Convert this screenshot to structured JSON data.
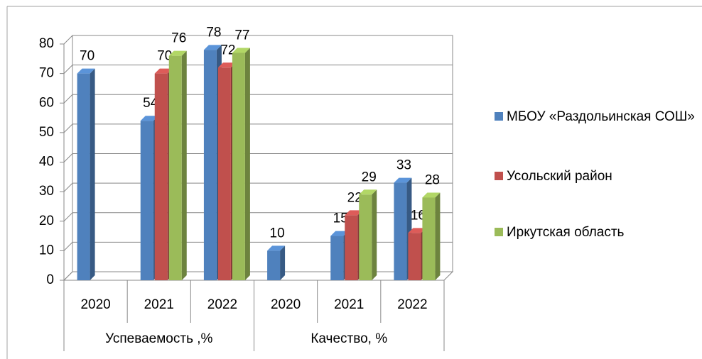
{
  "chart_data": {
    "type": "bar3d",
    "categories": [
      "2020",
      "2021",
      "2022",
      "2020",
      "2021",
      "2022"
    ],
    "groups": [
      "Успеваемость ,%",
      "Качество, %"
    ],
    "series": [
      {
        "name": "МБОУ «Раздольинская СОШ»",
        "color": "#4f81bd",
        "values": [
          70,
          54,
          78,
          10,
          15,
          33
        ]
      },
      {
        "name": "Усольский район",
        "color": "#c0504d",
        "values": [
          null,
          70,
          72,
          null,
          22,
          16
        ]
      },
      {
        "name": "Иркутская область",
        "color": "#9bbb59",
        "values": [
          null,
          76,
          77,
          null,
          29,
          28
        ]
      }
    ],
    "ylim": [
      0,
      80
    ],
    "yticks": [
      0,
      10,
      20,
      30,
      40,
      50,
      60,
      70,
      80
    ],
    "grid": true,
    "legend": "right"
  }
}
